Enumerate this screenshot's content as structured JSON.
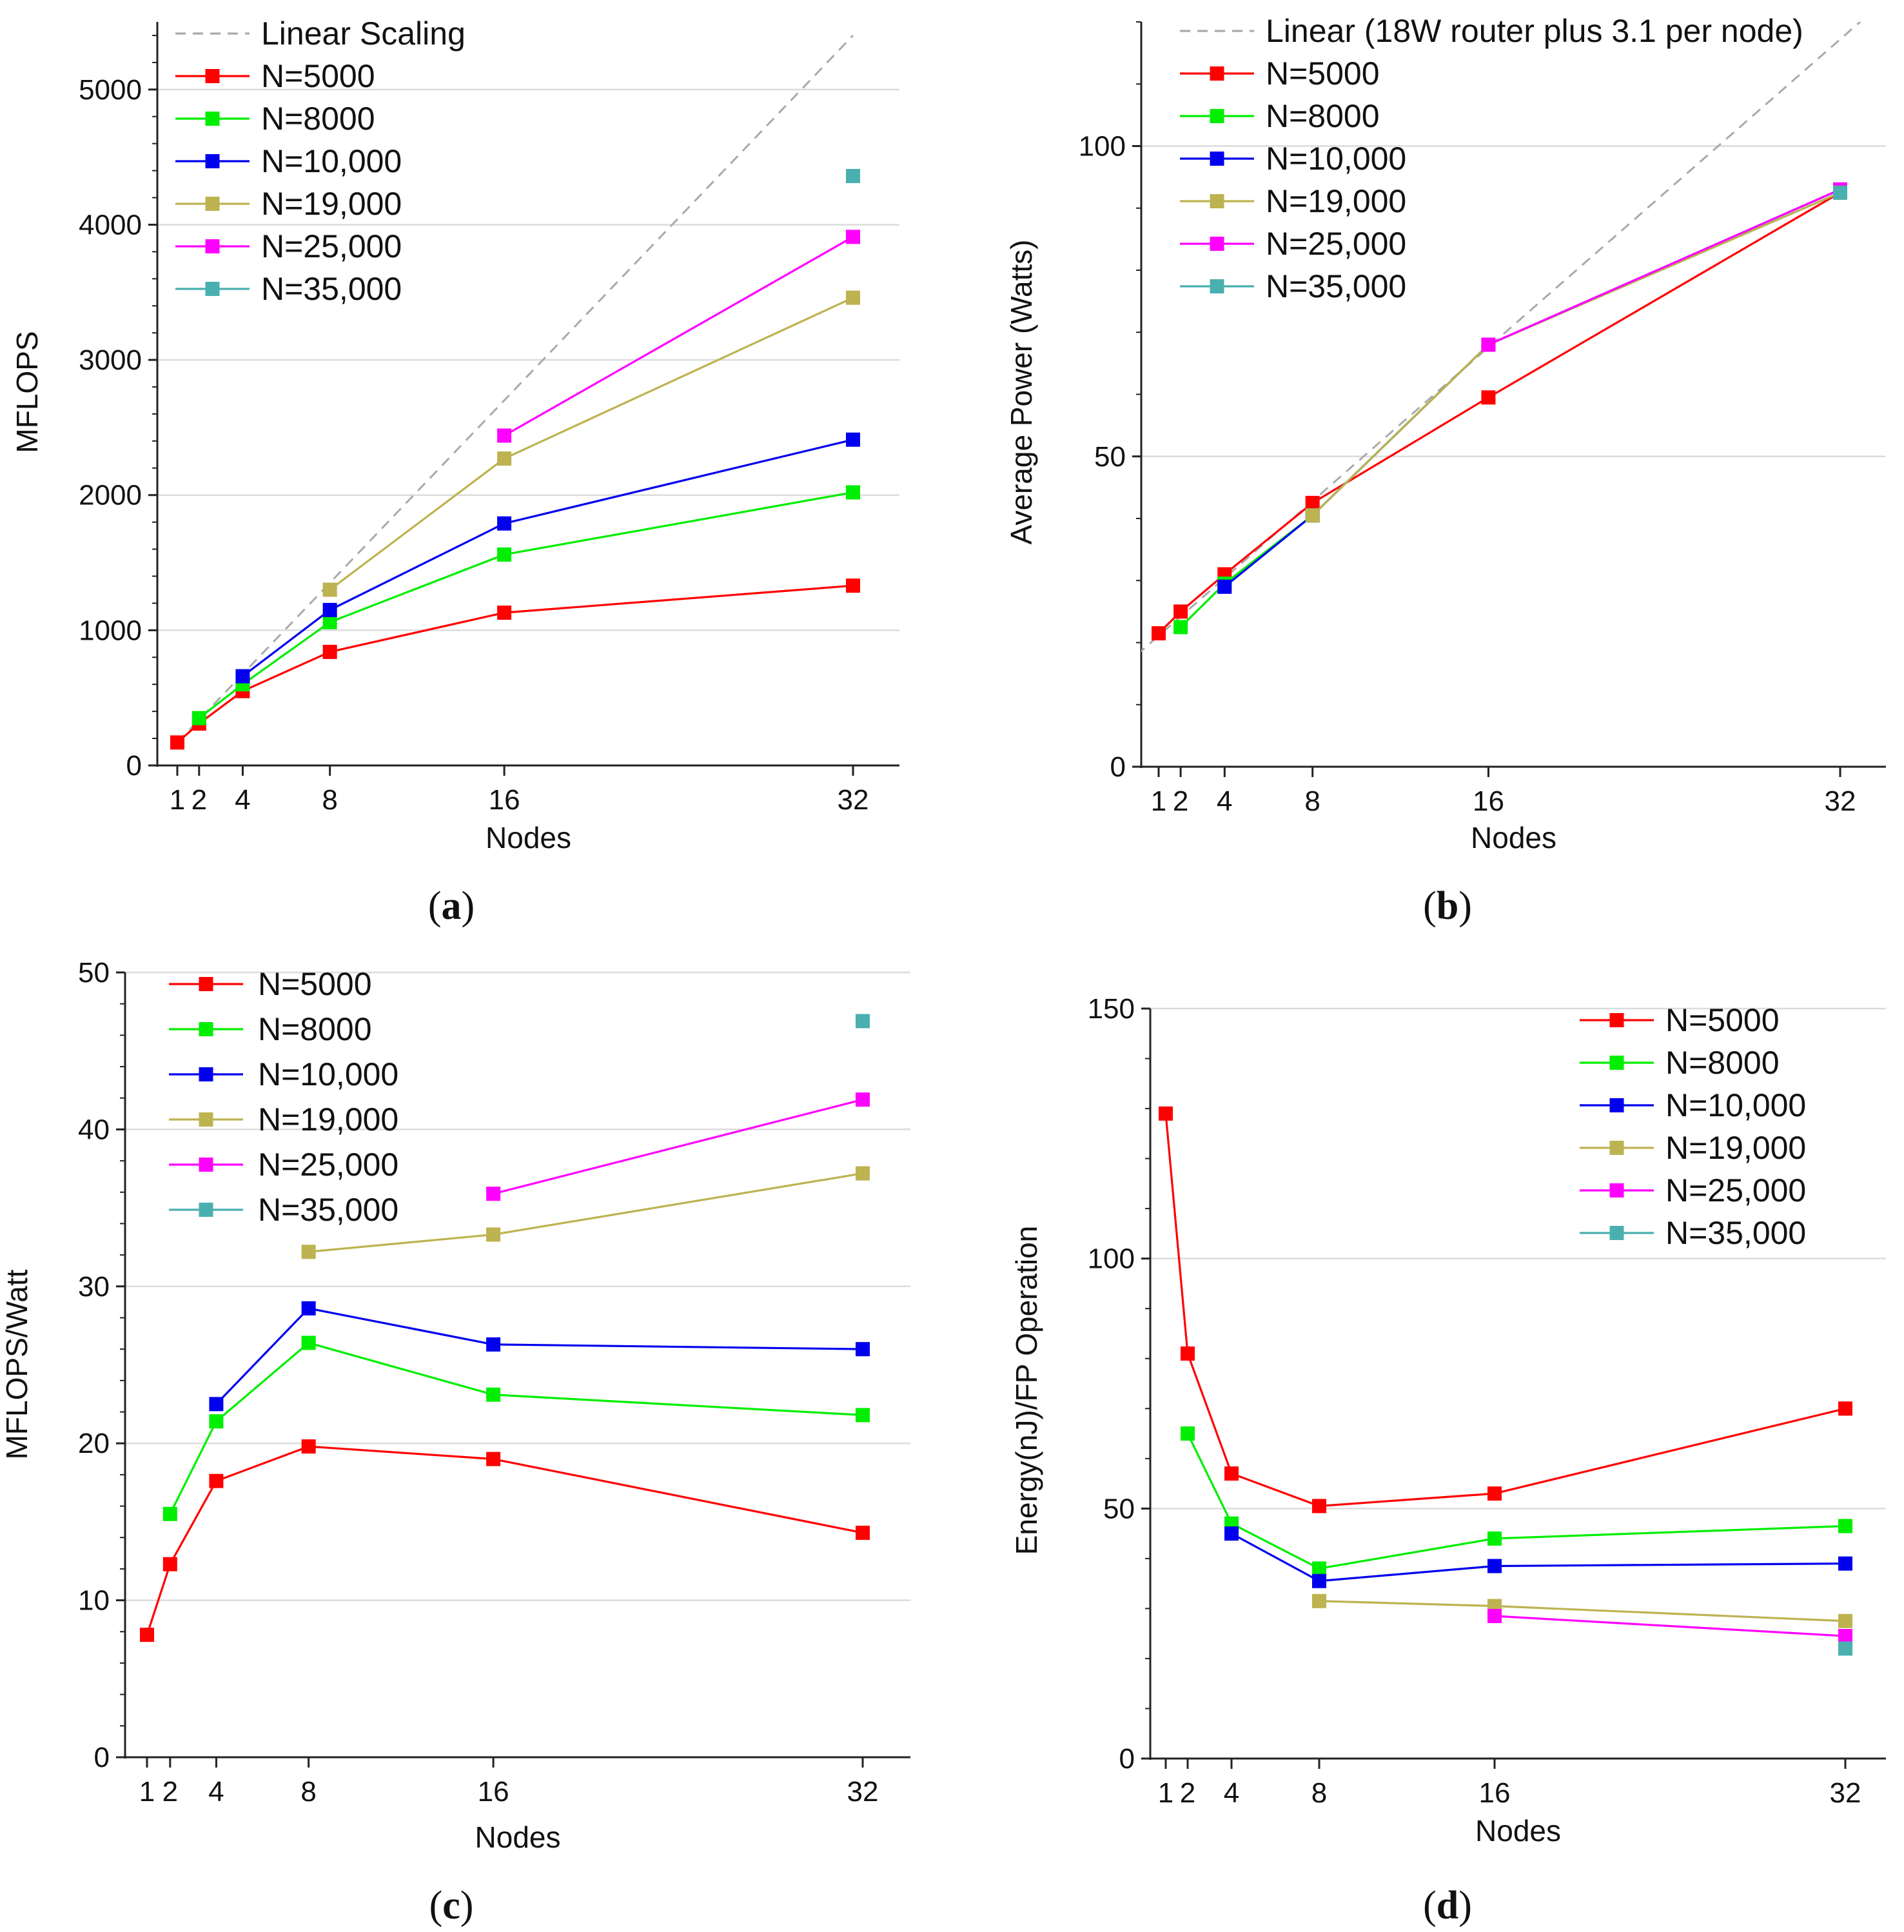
{
  "chart_data": [
    {
      "panel": "a",
      "caption_letter": "a",
      "type": "line",
      "title": "",
      "xlabel": "Nodes",
      "ylabel": "MFLOPS",
      "xlim": [
        0,
        34
      ],
      "ylim": [
        0,
        5500
      ],
      "xticks": [
        1,
        2,
        4,
        8,
        16,
        32
      ],
      "xtick_labels": [
        "1",
        "2",
        "4",
        "8",
        "16",
        "32"
      ],
      "yticks": [
        0,
        1000,
        2000,
        3000,
        4000,
        5000
      ],
      "ytick_labels": [
        "0",
        "1000",
        "2000",
        "3000",
        "4000",
        "5000"
      ],
      "grid": "y",
      "legend_position": "top-left",
      "series": [
        {
          "name": "Linear Scaling",
          "style": "dashed",
          "color": "#aaaaaa",
          "x": [
            1,
            32
          ],
          "values": [
            170,
            5400
          ]
        },
        {
          "name": "N=5000",
          "color": "#ff0000",
          "x": [
            1,
            2,
            4,
            8,
            16,
            32
          ],
          "values": [
            170,
            310,
            550,
            840,
            1130,
            1330
          ]
        },
        {
          "name": "N=8000",
          "color": "#00ee00",
          "x": [
            2,
            4,
            8,
            16,
            32
          ],
          "values": [
            350,
            600,
            1060,
            1560,
            2020
          ]
        },
        {
          "name": "N=10,000",
          "color": "#0000ee",
          "x": [
            4,
            8,
            16,
            32
          ],
          "values": [
            660,
            1150,
            1790,
            2410
          ]
        },
        {
          "name": "N=19,000",
          "color": "#bdb350",
          "x": [
            8,
            16,
            32
          ],
          "values": [
            1300,
            2270,
            3460
          ]
        },
        {
          "name": "N=25,000",
          "color": "#ff00ff",
          "x": [
            16,
            32
          ],
          "values": [
            2440,
            3910
          ]
        },
        {
          "name": "N=35,000",
          "color": "#4aafaf",
          "x": [
            32
          ],
          "values": [
            4360
          ]
        }
      ]
    },
    {
      "panel": "b",
      "caption_letter": "b",
      "type": "line",
      "title": "",
      "xlabel": "Nodes",
      "ylabel": "Average Power (Watts)",
      "xlim": [
        0,
        34
      ],
      "ylim": [
        0,
        120
      ],
      "xticks": [
        1,
        2,
        4,
        8,
        16,
        32
      ],
      "xtick_labels": [
        "1",
        "2",
        "4",
        "8",
        "16",
        "32"
      ],
      "yticks": [
        0,
        50,
        100
      ],
      "ytick_labels": [
        "0",
        "50",
        "100"
      ],
      "grid": "y",
      "legend_position": "top-left",
      "series": [
        {
          "name": "Linear (18W router plus 3.1 per node)",
          "style": "dashed",
          "color": "#aaaaaa",
          "x": [
            0,
            33
          ],
          "values": [
            18,
            120.3
          ]
        },
        {
          "name": "N=5000",
          "color": "#ff0000",
          "x": [
            1,
            2,
            4,
            8,
            16,
            32
          ],
          "values": [
            21.5,
            25,
            31,
            42.5,
            59.5,
            92.5
          ]
        },
        {
          "name": "N=8000",
          "color": "#00ee00",
          "x": [
            2,
            4,
            8,
            16,
            32
          ],
          "values": [
            22.5,
            29.5,
            40.5,
            68,
            92.5
          ]
        },
        {
          "name": "N=10,000",
          "color": "#0000ee",
          "x": [
            4,
            8,
            16,
            32
          ],
          "values": [
            29,
            40.5,
            68,
            93
          ]
        },
        {
          "name": "N=19,000",
          "color": "#bdb350",
          "x": [
            8,
            16,
            32
          ],
          "values": [
            40.5,
            68,
            92.5
          ]
        },
        {
          "name": "N=25,000",
          "color": "#ff00ff",
          "x": [
            16,
            32
          ],
          "values": [
            68,
            93
          ]
        },
        {
          "name": "N=35,000",
          "color": "#4aafaf",
          "x": [
            32
          ],
          "values": [
            92.5
          ]
        }
      ]
    },
    {
      "panel": "c",
      "caption_letter": "c",
      "type": "line",
      "title": "",
      "xlabel": "Nodes",
      "ylabel": "MFLOPS/Watt",
      "xlim": [
        0,
        34
      ],
      "ylim": [
        0,
        50
      ],
      "xticks": [
        1,
        2,
        4,
        8,
        16,
        32
      ],
      "xtick_labels": [
        "1",
        "2",
        "4",
        "8",
        "16",
        "32"
      ],
      "yticks": [
        0,
        10,
        20,
        30,
        40,
        50
      ],
      "ytick_labels": [
        "0",
        "10",
        "20",
        "30",
        "40",
        "50"
      ],
      "grid": "y",
      "legend_position": "top-left",
      "series": [
        {
          "name": "N=5000",
          "color": "#ff0000",
          "x": [
            1,
            2,
            4,
            8,
            16,
            32
          ],
          "values": [
            7.8,
            12.3,
            17.6,
            19.8,
            19.0,
            14.3
          ]
        },
        {
          "name": "N=8000",
          "color": "#00ee00",
          "x": [
            2,
            4,
            8,
            16,
            32
          ],
          "values": [
            15.5,
            21.4,
            26.4,
            23.1,
            21.8
          ]
        },
        {
          "name": "N=10,000",
          "color": "#0000ee",
          "x": [
            4,
            8,
            16,
            32
          ],
          "values": [
            22.5,
            28.6,
            26.3,
            26.0
          ]
        },
        {
          "name": "N=19,000",
          "color": "#bdb350",
          "x": [
            8,
            16,
            32
          ],
          "values": [
            32.2,
            33.3,
            37.2
          ]
        },
        {
          "name": "N=25,000",
          "color": "#ff00ff",
          "x": [
            16,
            32
          ],
          "values": [
            35.9,
            41.9
          ]
        },
        {
          "name": "N=35,000",
          "color": "#4aafaf",
          "x": [
            32
          ],
          "values": [
            46.9
          ]
        }
      ]
    },
    {
      "panel": "d",
      "caption_letter": "d",
      "type": "line",
      "title": "",
      "xlabel": "Nodes",
      "ylabel": "Energy(nJ)/FP Operation",
      "xlim": [
        0,
        34
      ],
      "ylim": [
        0,
        150
      ],
      "xticks": [
        1,
        2,
        4,
        8,
        16,
        32
      ],
      "xtick_labels": [
        "1",
        "2",
        "4",
        "8",
        "16",
        "32"
      ],
      "yticks": [
        0,
        50,
        100,
        150
      ],
      "ytick_labels": [
        "0",
        "50",
        "100",
        "150"
      ],
      "grid": "y",
      "legend_position": "top-right",
      "series": [
        {
          "name": "N=5000",
          "color": "#ff0000",
          "x": [
            1,
            2,
            4,
            8,
            16,
            32
          ],
          "values": [
            129,
            81,
            57,
            50.5,
            53,
            70
          ]
        },
        {
          "name": "N=8000",
          "color": "#00ee00",
          "x": [
            2,
            4,
            8,
            16,
            32
          ],
          "values": [
            65,
            47,
            38,
            44,
            46.5
          ]
        },
        {
          "name": "N=10,000",
          "color": "#0000ee",
          "x": [
            4,
            8,
            16,
            32
          ],
          "values": [
            45,
            35.5,
            38.5,
            39
          ]
        },
        {
          "name": "N=19,000",
          "color": "#bdb350",
          "x": [
            8,
            16,
            32
          ],
          "values": [
            31.5,
            30.5,
            27.5
          ]
        },
        {
          "name": "N=25,000",
          "color": "#ff00ff",
          "x": [
            16,
            32
          ],
          "values": [
            28.5,
            24.5
          ]
        },
        {
          "name": "N=35,000",
          "color": "#4aafaf",
          "x": [
            32
          ],
          "values": [
            22
          ]
        }
      ]
    }
  ]
}
